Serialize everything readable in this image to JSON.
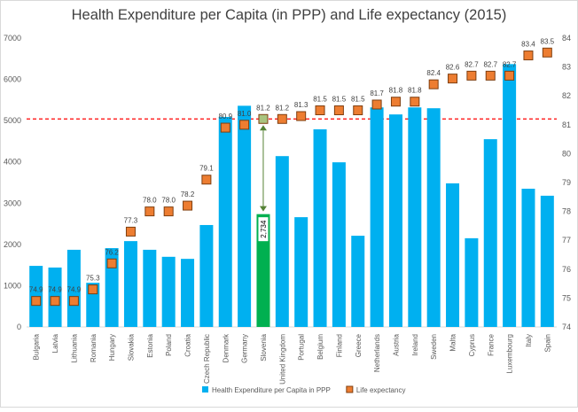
{
  "chart_data": {
    "type": "bar-line",
    "title": "Health Expenditure per Capita (in PPP) and Life expectancy (2015)",
    "categories": [
      "Bulgaria",
      "Latvia",
      "Lithuania",
      "Romania",
      "Hungary",
      "Slovakia",
      "Estonia",
      "Poland",
      "Croatia",
      "Czech Republic",
      "Denmark",
      "Germany",
      "Slovenia",
      "United Kingdom",
      "Portugal",
      "Belgium",
      "Finland",
      "Greece",
      "Netherlands",
      "Austria",
      "Ireland",
      "Sweden",
      "Malta",
      "Cyprus",
      "France",
      "Luxembourg",
      "Italy",
      "Spain"
    ],
    "series": [
      {
        "name": "Health Expenditure per Capita in PPP",
        "type": "bar",
        "color": "#00b0f0",
        "colors": [
          "#00b0f0",
          "#00b0f0",
          "#00b0f0",
          "#00b0f0",
          "#00b0f0",
          "#00b0f0",
          "#00b0f0",
          "#00b0f0",
          "#00b0f0",
          "#00b0f0",
          "#00b0f0",
          "#00b0f0",
          "#00b050",
          "#00b0f0",
          "#00b0f0",
          "#00b0f0",
          "#00b0f0",
          "#00b0f0",
          "#00b0f0",
          "#00b0f0",
          "#00b0f0",
          "#00b0f0",
          "#00b0f0",
          "#00b0f0",
          "#00b0f0",
          "#00b0f0",
          "#00b0f0",
          "#00b0f0"
        ],
        "values": [
          1480,
          1440,
          1870,
          1070,
          1910,
          2080,
          1870,
          1700,
          1650,
          2470,
          5090,
          5360,
          2734,
          4140,
          2660,
          4790,
          3990,
          2210,
          5320,
          5150,
          5320,
          5300,
          3480,
          2150,
          4550,
          6370,
          3350,
          3180
        ],
        "value_labels": [
          null,
          null,
          null,
          null,
          null,
          null,
          null,
          null,
          null,
          null,
          null,
          null,
          "2,734",
          null,
          null,
          null,
          null,
          null,
          null,
          null,
          null,
          null,
          null,
          null,
          null,
          null,
          null,
          null
        ]
      },
      {
        "name": "Life expectancy",
        "type": "marker",
        "axis": "y2",
        "color": "#ed7d31",
        "colors": [
          "#ed7d31",
          "#ed7d31",
          "#ed7d31",
          "#ed7d31",
          "#ed7d31",
          "#ed7d31",
          "#ed7d31",
          "#ed7d31",
          "#ed7d31",
          "#ed7d31",
          "#ed7d31",
          "#ed7d31",
          "#a9c47f",
          "#ed7d31",
          "#ed7d31",
          "#ed7d31",
          "#ed7d31",
          "#ed7d31",
          "#ed7d31",
          "#ed7d31",
          "#ed7d31",
          "#ed7d31",
          "#ed7d31",
          "#ed7d31",
          "#ed7d31",
          "#ed7d31",
          "#ed7d31",
          "#ed7d31"
        ],
        "values": [
          74.9,
          74.9,
          74.9,
          75.3,
          76.2,
          77.3,
          78.0,
          78.0,
          78.2,
          79.1,
          80.9,
          81.0,
          81.2,
          81.2,
          81.3,
          81.5,
          81.5,
          81.5,
          81.7,
          81.8,
          81.8,
          82.4,
          82.6,
          82.7,
          82.7,
          82.7,
          83.4,
          83.5
        ],
        "value_labels": [
          "74.9",
          "74.9",
          "74.9",
          "75.3",
          "76.2",
          "77.3",
          "78.0",
          "78.0",
          "78.2",
          "79.1",
          "80.9",
          "81.0",
          "81.2",
          "81.2",
          "81.3",
          "81.5",
          "81.5",
          "81.5",
          "81.7",
          "81.8",
          "81.8",
          "82.4",
          "82.6",
          "82.7",
          "82.7",
          "82.7",
          "83.4",
          "83.5"
        ]
      }
    ],
    "reference_line": {
      "axis": "y2",
      "value": 81.2,
      "color": "#ff0000"
    },
    "ylim": [
      0,
      7000
    ],
    "yticks": [
      0,
      1000,
      2000,
      3000,
      4000,
      5000,
      6000,
      7000
    ],
    "y2lim": [
      74,
      84
    ],
    "y2ticks": [
      74,
      75,
      76,
      77,
      78,
      79,
      80,
      81,
      82,
      83,
      84
    ],
    "grid": false,
    "legend": "bottom"
  }
}
